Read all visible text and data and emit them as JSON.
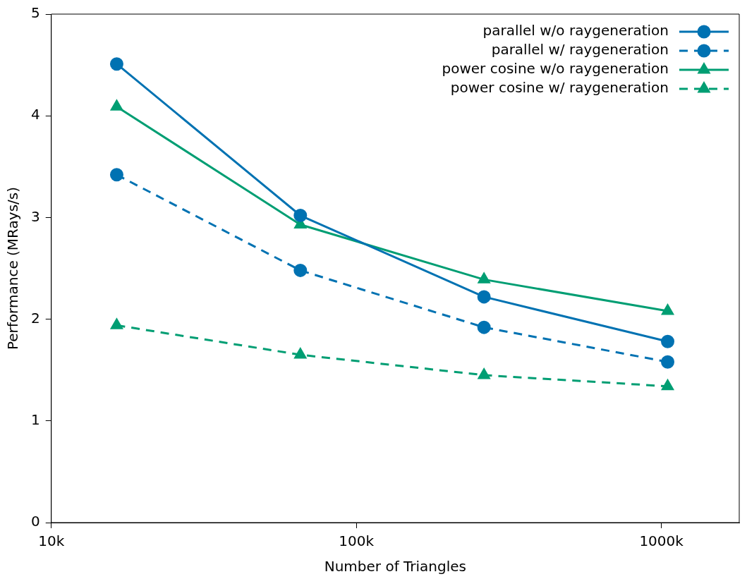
{
  "chart_data": {
    "type": "line",
    "xlabel": "Number of Triangles",
    "ylabel": "Performance (MRays/s)",
    "log": "x",
    "x": [
      16384,
      65536,
      262144,
      1048576
    ],
    "xlim": [
      10000,
      1800000
    ],
    "xticks": [
      {
        "value": 10000,
        "label": "10k"
      },
      {
        "value": 100000,
        "label": "100k"
      },
      {
        "value": 1000000,
        "label": "1000k"
      }
    ],
    "ylim": [
      0,
      5
    ],
    "yticks": [
      0,
      1,
      2,
      3,
      4,
      5
    ],
    "grid": false,
    "legend": "top right",
    "series": [
      {
        "name": "parallel w/o raygeneration",
        "color": "#0072b2",
        "marker": "circle",
        "line_style": "solid",
        "values": [
          4.51,
          3.02,
          2.22,
          1.78
        ]
      },
      {
        "name": "parallel w/ raygeneration",
        "color": "#0072b2",
        "marker": "circle",
        "line_style": "dashed",
        "values": [
          3.42,
          2.48,
          1.92,
          1.58
        ]
      },
      {
        "name": "power cosine w/o raygeneration",
        "color": "#009e73",
        "marker": "triangle",
        "line_style": "solid",
        "values": [
          4.09,
          2.93,
          2.39,
          2.08
        ]
      },
      {
        "name": "power cosine w/ raygeneration",
        "color": "#009e73",
        "marker": "triangle",
        "line_style": "dashed",
        "values": [
          1.94,
          1.65,
          1.45,
          1.34
        ]
      }
    ]
  }
}
